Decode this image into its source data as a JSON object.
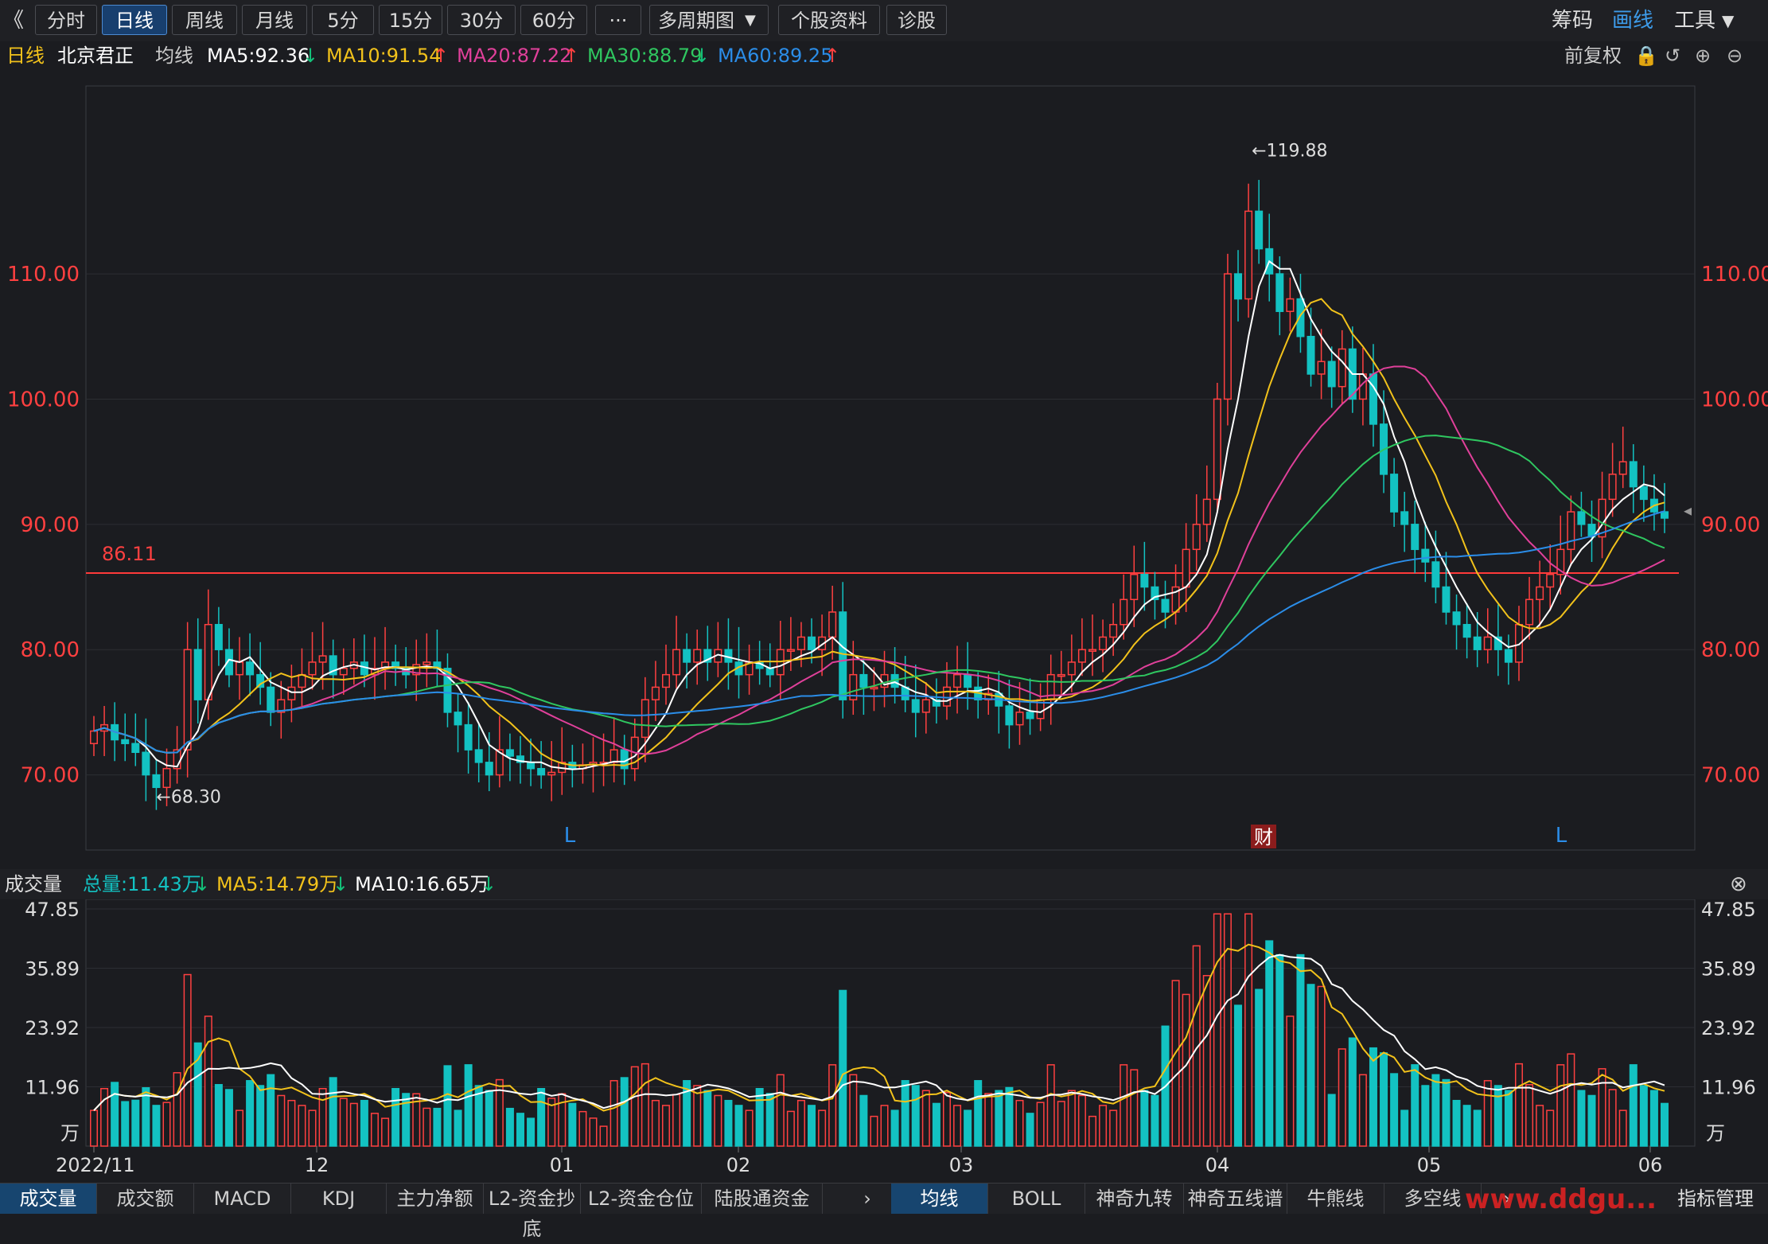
{
  "toolbar": {
    "back_icon": "double-chevron-left-icon",
    "tabs": [
      "分时",
      "日线",
      "周线",
      "月线",
      "5分",
      "15分",
      "30分",
      "60分",
      "···",
      "多周期图",
      "个股资料",
      "诊股"
    ],
    "active_tab": "日线",
    "right_items": [
      "筹码",
      "画线",
      "工具"
    ],
    "active_right": "画线"
  },
  "ma_bar": {
    "period": "日线",
    "stock_name": "北京君正",
    "avg_label": "均线",
    "ma5": "MA5:92.36",
    "ma10": "MA10:91.54",
    "ma20": "MA20:87.22",
    "ma30": "MA30:88.79",
    "ma60": "MA60:89.25",
    "adjust": "前复权",
    "colors": {
      "ma5": "#ffffff",
      "ma10": "#f2c21b",
      "ma20": "#e0409a",
      "ma30": "#2fc760",
      "ma60": "#2b8de8",
      "up": "#ff4040",
      "down": "#13c2c2"
    }
  },
  "price_axis": {
    "ticks": [
      "110.00",
      "100.00",
      "90.00",
      "80.00",
      "70.00"
    ],
    "high_label": "←119.88",
    "low_label": "←68.30",
    "hline_label": "86.11",
    "markers": [
      "L",
      "财",
      "L"
    ]
  },
  "volume_header": {
    "title": "成交量",
    "total": "总量:11.43万",
    "ma5": "MA5:14.79万",
    "ma10": "MA10:16.65万"
  },
  "volume_axis": {
    "ticks": [
      "47.85",
      "35.89",
      "23.92",
      "11.96",
      "万"
    ]
  },
  "date_axis": [
    "2022/11",
    "12",
    "01",
    "02",
    "03",
    "04",
    "05",
    "06"
  ],
  "bottom_tabs_left": [
    "成交量",
    "成交额",
    "MACD",
    "KDJ",
    "主力净额",
    "L2-资金抄底",
    "L2-资金仓位",
    "陆股通资金"
  ],
  "bottom_tabs_right": [
    "均线",
    "BOLL",
    "神奇九转",
    "神奇五线谱",
    "牛熊线",
    "多空线"
  ],
  "bottom_right_label": "指标管理",
  "watermark": "www.ddgu...",
  "chart_data": {
    "type": "candlestick",
    "price_range": [
      64,
      125
    ],
    "volume_max": 47.85,
    "highlighted_values": {
      "high": 119.88,
      "low": 68.3,
      "reference_line": 86.11
    },
    "closes": [
      73.5,
      74,
      72.8,
      72.5,
      71.8,
      70,
      69,
      70.5,
      72,
      80,
      76,
      82,
      80,
      78,
      79,
      78,
      77,
      75,
      76,
      77,
      78,
      79,
      79.5,
      78,
      78.5,
      79,
      78,
      78.5,
      79,
      78.5,
      78,
      78.8,
      79,
      78.5,
      75,
      74,
      72,
      71,
      70,
      72,
      71.5,
      71,
      70.5,
      70,
      70.2,
      71,
      70.5,
      70.8,
      71,
      71,
      72,
      70.5,
      73,
      76,
      77,
      78,
      80,
      79,
      80,
      79,
      80,
      79,
      78,
      79,
      78.5,
      78,
      80,
      80,
      81,
      80,
      81,
      83,
      76,
      78,
      77,
      77,
      78,
      77,
      76,
      75,
      76,
      75.5,
      77,
      78,
      77,
      76,
      76.5,
      75.5,
      74,
      75,
      74.5,
      76,
      78,
      78,
      79,
      80,
      80,
      81,
      82,
      84,
      86,
      85,
      84,
      83,
      85,
      88,
      90,
      92,
      100,
      110,
      108,
      115,
      112,
      110,
      107,
      108,
      105,
      102,
      103,
      101,
      104,
      100,
      102,
      98,
      94,
      91,
      90,
      88,
      87,
      85,
      83,
      82,
      81,
      80,
      81,
      80,
      79,
      82,
      84,
      85,
      86,
      88,
      91,
      90,
      89,
      92,
      94,
      95,
      93,
      92,
      91,
      90.5
    ]
  }
}
